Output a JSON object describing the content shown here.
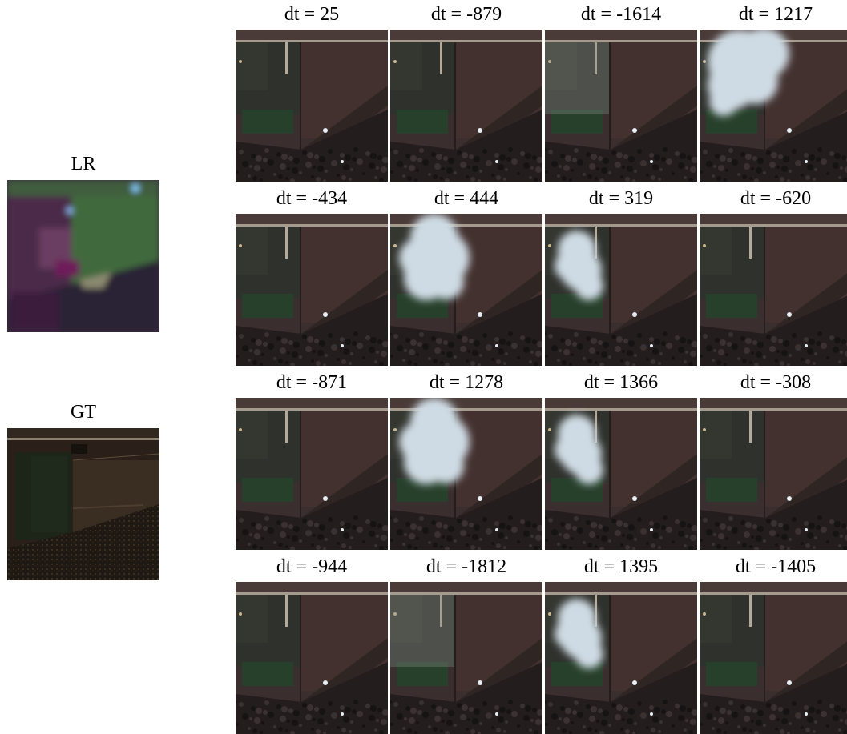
{
  "lr": {
    "label": "LR"
  },
  "gt": {
    "label": "GT"
  },
  "tiles": [
    {
      "label": "dt = 25",
      "cloud": "none"
    },
    {
      "label": "dt = -879",
      "cloud": "none"
    },
    {
      "label": "dt = -1614",
      "cloud": "haze"
    },
    {
      "label": "dt = 1217",
      "cloud": "big-top"
    },
    {
      "label": "dt = -434",
      "cloud": "none"
    },
    {
      "label": "dt = 444",
      "cloud": "big"
    },
    {
      "label": "dt = 319",
      "cloud": "medium"
    },
    {
      "label": "dt = -620",
      "cloud": "none"
    },
    {
      "label": "dt = -871",
      "cloud": "none"
    },
    {
      "label": "dt = 1278",
      "cloud": "big"
    },
    {
      "label": "dt = 1366",
      "cloud": "medium"
    },
    {
      "label": "dt = -308",
      "cloud": "none"
    },
    {
      "label": "dt = -944",
      "cloud": "none"
    },
    {
      "label": "dt = -1812",
      "cloud": "haze"
    },
    {
      "label": "dt = 1395",
      "cloud": "medium"
    },
    {
      "label": "dt = -1405",
      "cloud": "none"
    }
  ]
}
